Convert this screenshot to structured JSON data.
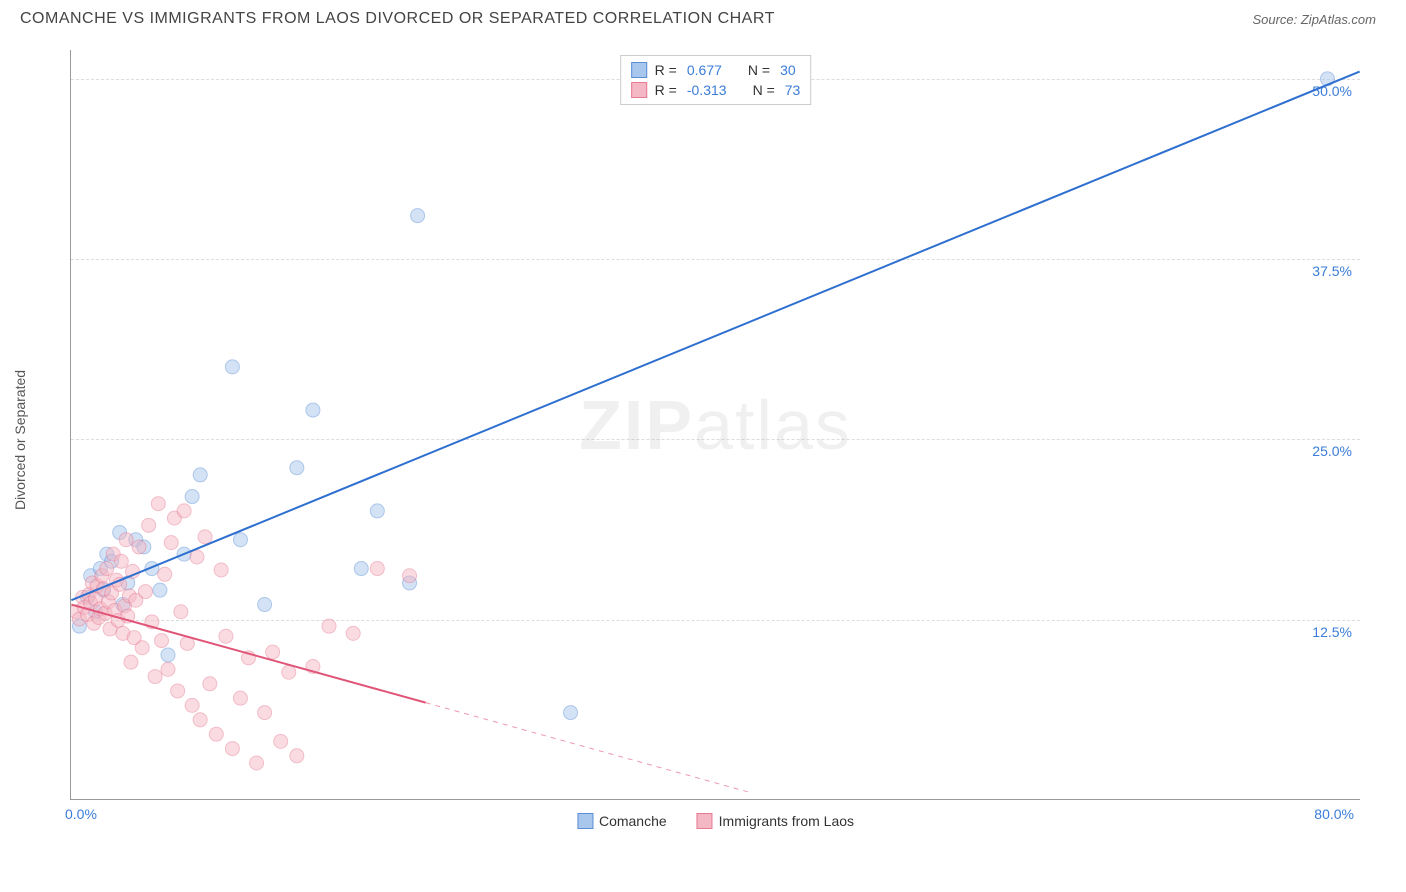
{
  "header": {
    "title": "COMANCHE VS IMMIGRANTS FROM LAOS DIVORCED OR SEPARATED CORRELATION CHART",
    "source_prefix": "Source: ",
    "source": "ZipAtlas.com"
  },
  "chart": {
    "type": "scatter",
    "y_label": "Divorced or Separated",
    "xlim": [
      0,
      80
    ],
    "ylim": [
      0,
      52
    ],
    "x_ticks": [
      {
        "val": 0,
        "label": "0.0%"
      },
      {
        "val": 80,
        "label": "80.0%"
      }
    ],
    "y_ticks": [
      {
        "val": 12.5,
        "label": "12.5%"
      },
      {
        "val": 25.0,
        "label": "25.0%"
      },
      {
        "val": 37.5,
        "label": "37.5%"
      },
      {
        "val": 50.0,
        "label": "50.0%"
      }
    ],
    "grid_color": "#dddddd",
    "background_color": "#ffffff",
    "marker_radius": 7,
    "marker_opacity": 0.5,
    "line_width": 2,
    "series": [
      {
        "name": "Comanche",
        "color_fill": "#a9c6ec",
        "color_stroke": "#5a8fd6",
        "line_color": "#2e6fd0",
        "r": 0.677,
        "n": 30,
        "trend": {
          "x1": 0,
          "y1": 13.8,
          "x2": 80,
          "y2": 50.5,
          "dash_from_x": null
        },
        "points": [
          [
            0.5,
            12
          ],
          [
            1,
            14
          ],
          [
            1.2,
            15.5
          ],
          [
            1.5,
            13
          ],
          [
            1.8,
            16
          ],
          [
            2,
            14.5
          ],
          [
            2.2,
            17
          ],
          [
            2.5,
            16.5
          ],
          [
            3,
            18.5
          ],
          [
            3.2,
            13.5
          ],
          [
            3.5,
            15
          ],
          [
            4,
            18
          ],
          [
            4.5,
            17.5
          ],
          [
            5,
            16
          ],
          [
            5.5,
            14.5
          ],
          [
            6,
            10
          ],
          [
            7,
            17
          ],
          [
            7.5,
            21
          ],
          [
            8,
            22.5
          ],
          [
            10,
            30
          ],
          [
            10.5,
            18
          ],
          [
            12,
            13.5
          ],
          [
            14,
            23
          ],
          [
            15,
            27
          ],
          [
            18,
            16
          ],
          [
            19,
            20
          ],
          [
            21,
            15
          ],
          [
            21.5,
            40.5
          ],
          [
            31,
            6
          ],
          [
            78,
            50
          ]
        ]
      },
      {
        "name": "Immigrants from Laos",
        "color_fill": "#f4b8c4",
        "color_stroke": "#e77a93",
        "line_color": "#e05577",
        "r": -0.313,
        "n": 73,
        "trend": {
          "x1": 0,
          "y1": 13.5,
          "x2": 42,
          "y2": 0.5,
          "dash_from_x": 22
        },
        "points": [
          [
            0.3,
            13
          ],
          [
            0.5,
            12.5
          ],
          [
            0.7,
            14
          ],
          [
            0.8,
            13.3
          ],
          [
            1,
            12.8
          ],
          [
            1.1,
            14.2
          ],
          [
            1.2,
            13.6
          ],
          [
            1.3,
            15
          ],
          [
            1.4,
            12.2
          ],
          [
            1.5,
            13.9
          ],
          [
            1.6,
            14.8
          ],
          [
            1.7,
            12.6
          ],
          [
            1.8,
            13.2
          ],
          [
            1.9,
            15.5
          ],
          [
            2,
            14.6
          ],
          [
            2.1,
            12.9
          ],
          [
            2.2,
            16
          ],
          [
            2.3,
            13.7
          ],
          [
            2.4,
            11.8
          ],
          [
            2.5,
            14.3
          ],
          [
            2.6,
            17
          ],
          [
            2.7,
            13.1
          ],
          [
            2.8,
            15.2
          ],
          [
            2.9,
            12.4
          ],
          [
            3,
            14.9
          ],
          [
            3.1,
            16.5
          ],
          [
            3.2,
            11.5
          ],
          [
            3.3,
            13.4
          ],
          [
            3.4,
            18
          ],
          [
            3.5,
            12.7
          ],
          [
            3.6,
            14.1
          ],
          [
            3.7,
            9.5
          ],
          [
            3.8,
            15.8
          ],
          [
            3.9,
            11.2
          ],
          [
            4,
            13.8
          ],
          [
            4.2,
            17.5
          ],
          [
            4.4,
            10.5
          ],
          [
            4.6,
            14.4
          ],
          [
            4.8,
            19
          ],
          [
            5,
            12.3
          ],
          [
            5.2,
            8.5
          ],
          [
            5.4,
            20.5
          ],
          [
            5.6,
            11
          ],
          [
            5.8,
            15.6
          ],
          [
            6,
            9
          ],
          [
            6.2,
            17.8
          ],
          [
            6.4,
            19.5
          ],
          [
            6.6,
            7.5
          ],
          [
            6.8,
            13
          ],
          [
            7,
            20
          ],
          [
            7.2,
            10.8
          ],
          [
            7.5,
            6.5
          ],
          [
            7.8,
            16.8
          ],
          [
            8,
            5.5
          ],
          [
            8.3,
            18.2
          ],
          [
            8.6,
            8
          ],
          [
            9,
            4.5
          ],
          [
            9.3,
            15.9
          ],
          [
            9.6,
            11.3
          ],
          [
            10,
            3.5
          ],
          [
            10.5,
            7
          ],
          [
            11,
            9.8
          ],
          [
            11.5,
            2.5
          ],
          [
            12,
            6
          ],
          [
            12.5,
            10.2
          ],
          [
            13,
            4
          ],
          [
            13.5,
            8.8
          ],
          [
            14,
            3
          ],
          [
            15,
            9.2
          ],
          [
            16,
            12
          ],
          [
            17.5,
            11.5
          ],
          [
            19,
            16
          ],
          [
            21,
            15.5
          ]
        ]
      }
    ],
    "legend_top": {
      "r_label": "R =",
      "n_label": "N ="
    },
    "watermark": {
      "text1": "ZIP",
      "text2": "atlas"
    }
  }
}
